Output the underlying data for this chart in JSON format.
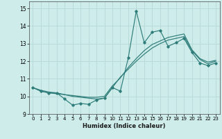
{
  "xlabel": "Humidex (Indice chaleur)",
  "bg_color": "#ceecea",
  "grid_color": "#b8dbd9",
  "line_color": "#2e7d7a",
  "xlim": [
    -0.5,
    23.5
  ],
  "ylim": [
    9.0,
    15.4
  ],
  "yticks": [
    9,
    10,
    11,
    12,
    13,
    14,
    15
  ],
  "xticks": [
    0,
    1,
    2,
    3,
    4,
    5,
    6,
    7,
    8,
    9,
    10,
    11,
    12,
    13,
    14,
    15,
    16,
    17,
    18,
    19,
    20,
    21,
    22,
    23
  ],
  "line1_x": [
    0,
    1,
    2,
    3,
    4,
    5,
    6,
    7,
    8,
    9,
    10,
    11,
    12,
    13,
    14,
    15,
    16,
    17,
    18,
    19,
    20,
    21,
    22,
    23
  ],
  "line1_y": [
    10.5,
    10.3,
    10.2,
    10.2,
    9.85,
    9.5,
    9.6,
    9.55,
    9.8,
    9.9,
    10.5,
    10.3,
    12.2,
    14.85,
    13.05,
    13.65,
    13.75,
    12.85,
    13.05,
    13.3,
    12.5,
    11.9,
    11.75,
    11.9
  ],
  "line2_x": [
    0,
    1,
    2,
    3,
    4,
    5,
    6,
    7,
    8,
    9,
    10,
    11,
    12,
    13,
    14,
    15,
    16,
    17,
    18,
    19,
    20,
    21,
    22,
    23
  ],
  "line2_y": [
    10.5,
    10.35,
    10.25,
    10.2,
    10.1,
    10.0,
    9.95,
    9.9,
    9.85,
    9.9,
    10.5,
    11.1,
    11.55,
    12.0,
    12.4,
    12.75,
    13.0,
    13.2,
    13.3,
    13.4,
    12.6,
    12.1,
    11.85,
    12.0
  ],
  "line3_x": [
    0,
    1,
    2,
    3,
    4,
    5,
    6,
    7,
    8,
    9,
    10,
    11,
    12,
    13,
    14,
    15,
    16,
    17,
    18,
    19,
    20,
    21,
    22,
    23
  ],
  "line3_y": [
    10.5,
    10.3,
    10.2,
    10.15,
    10.1,
    10.05,
    10.0,
    9.95,
    9.95,
    10.0,
    10.6,
    11.05,
    11.65,
    12.15,
    12.6,
    12.95,
    13.15,
    13.35,
    13.45,
    13.55,
    12.65,
    12.15,
    11.95,
    12.05
  ]
}
